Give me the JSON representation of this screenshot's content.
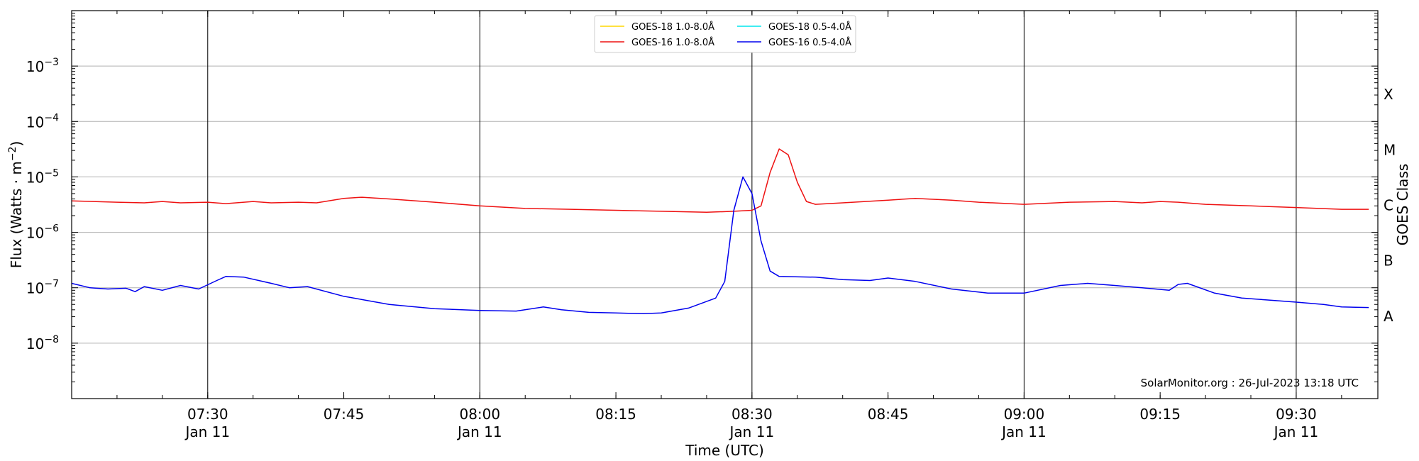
{
  "chart_data": {
    "type": "line",
    "ylabel": "Flux (Watts · m",
    "ylabel_sup": "−2",
    "ylabel_close": ")",
    "xlabel": "Time (UTC)",
    "right_label": "GOES Class",
    "y_scale": "log",
    "ylim": [
      1e-09,
      0.01
    ],
    "xlim_minutes": [
      435,
      579
    ],
    "grid": "horizontal",
    "legend_position": "top-center",
    "credit": "SolarMonitor.org : 26-Jul-2023 13:18 UTC",
    "y_ticks": [
      {
        "base": "10",
        "exp": "−3",
        "value": 0.001
      },
      {
        "base": "10",
        "exp": "−4",
        "value": 0.0001
      },
      {
        "base": "10",
        "exp": "−5",
        "value": 1e-05
      },
      {
        "base": "10",
        "exp": "−6",
        "value": 1e-06
      },
      {
        "base": "10",
        "exp": "−7",
        "value": 1e-07
      },
      {
        "base": "10",
        "exp": "−8",
        "value": 1e-08
      }
    ],
    "x_ticks": [
      {
        "time": "07:30",
        "date": "Jan 11",
        "minutes": 450,
        "vline": true
      },
      {
        "time": "07:45",
        "date": "",
        "minutes": 465,
        "vline": false
      },
      {
        "time": "08:00",
        "date": "Jan 11",
        "minutes": 480,
        "vline": true
      },
      {
        "time": "08:15",
        "date": "",
        "minutes": 495,
        "vline": false
      },
      {
        "time": "08:30",
        "date": "Jan 11",
        "minutes": 510,
        "vline": true
      },
      {
        "time": "08:45",
        "date": "",
        "minutes": 525,
        "vline": false
      },
      {
        "time": "09:00",
        "date": "Jan 11",
        "minutes": 540,
        "vline": true
      },
      {
        "time": "09:15",
        "date": "",
        "minutes": 555,
        "vline": false
      },
      {
        "time": "09:30",
        "date": "Jan 11",
        "minutes": 570,
        "vline": true
      }
    ],
    "goes_classes": [
      {
        "label": "X",
        "value": 0.0003162
      },
      {
        "label": "M",
        "value": 3.162e-05
      },
      {
        "label": "C",
        "value": 3.162e-06
      },
      {
        "label": "B",
        "value": 3.162e-07
      },
      {
        "label": "A",
        "value": 3.162e-08
      }
    ],
    "legend": [
      {
        "name": "GOES-18 1.0-8.0Å",
        "color": "#ffd700"
      },
      {
        "name": "GOES-16 1.0-8.0Å",
        "color": "#ee1111"
      },
      {
        "name": "GOES-18 0.5-4.0Å",
        "color": "#00e5ee"
      },
      {
        "name": "GOES-16 0.5-4.0Å",
        "color": "#0000ee"
      }
    ],
    "series": [
      {
        "name": "GOES-16 1.0-8.0Å",
        "color": "#ee1111",
        "points": [
          [
            435,
            3.7e-06
          ],
          [
            440,
            3.5e-06
          ],
          [
            443,
            3.4e-06
          ],
          [
            445,
            3.6e-06
          ],
          [
            447,
            3.4e-06
          ],
          [
            450,
            3.5e-06
          ],
          [
            452,
            3.3e-06
          ],
          [
            455,
            3.6e-06
          ],
          [
            457,
            3.4e-06
          ],
          [
            460,
            3.5e-06
          ],
          [
            462,
            3.4e-06
          ],
          [
            465,
            4.1e-06
          ],
          [
            467,
            4.3e-06
          ],
          [
            470,
            4e-06
          ],
          [
            475,
            3.5e-06
          ],
          [
            480,
            3e-06
          ],
          [
            485,
            2.7e-06
          ],
          [
            490,
            2.6e-06
          ],
          [
            495,
            2.5e-06
          ],
          [
            500,
            2.4e-06
          ],
          [
            505,
            2.3e-06
          ],
          [
            508,
            2.4e-06
          ],
          [
            510,
            2.5e-06
          ],
          [
            511,
            3e-06
          ],
          [
            512,
            1.2e-05
          ],
          [
            513,
            3.2e-05
          ],
          [
            514,
            2.5e-05
          ],
          [
            515,
            8e-06
          ],
          [
            516,
            3.6e-06
          ],
          [
            517,
            3.2e-06
          ],
          [
            520,
            3.4e-06
          ],
          [
            525,
            3.8e-06
          ],
          [
            528,
            4.1e-06
          ],
          [
            532,
            3.8e-06
          ],
          [
            535,
            3.5e-06
          ],
          [
            540,
            3.2e-06
          ],
          [
            545,
            3.5e-06
          ],
          [
            550,
            3.6e-06
          ],
          [
            553,
            3.4e-06
          ],
          [
            555,
            3.6e-06
          ],
          [
            557,
            3.5e-06
          ],
          [
            560,
            3.2e-06
          ],
          [
            565,
            3e-06
          ],
          [
            570,
            2.8e-06
          ],
          [
            575,
            2.6e-06
          ],
          [
            578,
            2.6e-06
          ]
        ]
      },
      {
        "name": "GOES-16 0.5-4.0Å",
        "color": "#0000ee",
        "points": [
          [
            435,
            1.2e-07
          ],
          [
            437,
            1e-07
          ],
          [
            439,
            9.5e-08
          ],
          [
            441,
            9.8e-08
          ],
          [
            442,
            8.5e-08
          ],
          [
            443,
            1.05e-07
          ],
          [
            445,
            9e-08
          ],
          [
            447,
            1.1e-07
          ],
          [
            449,
            9.5e-08
          ],
          [
            451,
            1.35e-07
          ],
          [
            452,
            1.6e-07
          ],
          [
            454,
            1.55e-07
          ],
          [
            457,
            1.2e-07
          ],
          [
            459,
            1e-07
          ],
          [
            461,
            1.05e-07
          ],
          [
            465,
            7e-08
          ],
          [
            470,
            5e-08
          ],
          [
            475,
            4.2e-08
          ],
          [
            480,
            3.9e-08
          ],
          [
            484,
            3.8e-08
          ],
          [
            487,
            4.5e-08
          ],
          [
            489,
            4e-08
          ],
          [
            492,
            3.6e-08
          ],
          [
            495,
            3.5e-08
          ],
          [
            498,
            3.4e-08
          ],
          [
            500,
            3.5e-08
          ],
          [
            503,
            4.3e-08
          ],
          [
            506,
            6.5e-08
          ],
          [
            507,
            1.3e-07
          ],
          [
            508,
            2.5e-06
          ],
          [
            509,
            1e-05
          ],
          [
            510,
            5e-06
          ],
          [
            511,
            7e-07
          ],
          [
            512,
            2e-07
          ],
          [
            513,
            1.6e-07
          ],
          [
            517,
            1.55e-07
          ],
          [
            520,
            1.4e-07
          ],
          [
            523,
            1.35e-07
          ],
          [
            525,
            1.5e-07
          ],
          [
            528,
            1.3e-07
          ],
          [
            532,
            9.5e-08
          ],
          [
            536,
            8e-08
          ],
          [
            540,
            8e-08
          ],
          [
            544,
            1.1e-07
          ],
          [
            547,
            1.2e-07
          ],
          [
            550,
            1.1e-07
          ],
          [
            553,
            1e-07
          ],
          [
            556,
            9e-08
          ],
          [
            557,
            1.15e-07
          ],
          [
            558,
            1.2e-07
          ],
          [
            561,
            8e-08
          ],
          [
            564,
            6.5e-08
          ],
          [
            567,
            6e-08
          ],
          [
            570,
            5.5e-08
          ],
          [
            573,
            5e-08
          ],
          [
            575,
            4.5e-08
          ],
          [
            578,
            4.4e-08
          ]
        ]
      }
    ]
  }
}
